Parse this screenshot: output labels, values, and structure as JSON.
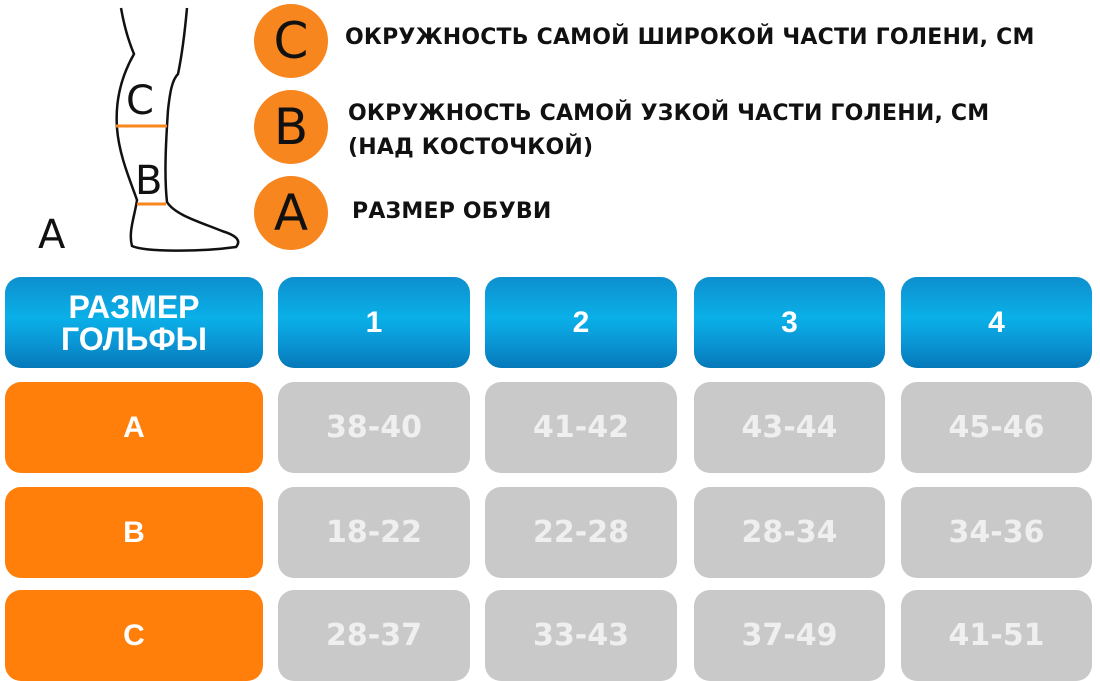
{
  "diagram": {
    "labels": {
      "c": "C",
      "b": "B",
      "a": "A"
    },
    "accent_color": "#f7861e"
  },
  "legend": [
    {
      "letter": "C",
      "text": "ОКРУЖНОСТЬ САМОЙ ШИРОКОЙ ЧАСТИ ГОЛЕНИ, СМ"
    },
    {
      "letter": "B",
      "text_line1": "ОКРУЖНОСТЬ САМОЙ УЗКОЙ ЧАСТИ ГОЛЕНИ, СМ",
      "text_line2": "(НАД КОСТОЧКОЙ)"
    },
    {
      "letter": "A",
      "text": "РАЗМЕР ОБУВИ"
    }
  ],
  "table": {
    "header_label_line1": "РАЗМЕР",
    "header_label_line2": "ГОЛЬФЫ",
    "sizes": [
      "1",
      "2",
      "3",
      "4"
    ],
    "rows": [
      {
        "label": "A",
        "values": [
          "38-40",
          "41-42",
          "43-44",
          "45-46"
        ]
      },
      {
        "label": "B",
        "values": [
          "18-22",
          "22-28",
          "28-34",
          "34-36"
        ]
      },
      {
        "label": "C",
        "values": [
          "28-37",
          "33-43",
          "37-49",
          "41-51"
        ]
      }
    ],
    "colors": {
      "header": "#0a9ad8",
      "row_label": "#ff7f0a",
      "value_cell": "#c9c9c9"
    }
  }
}
